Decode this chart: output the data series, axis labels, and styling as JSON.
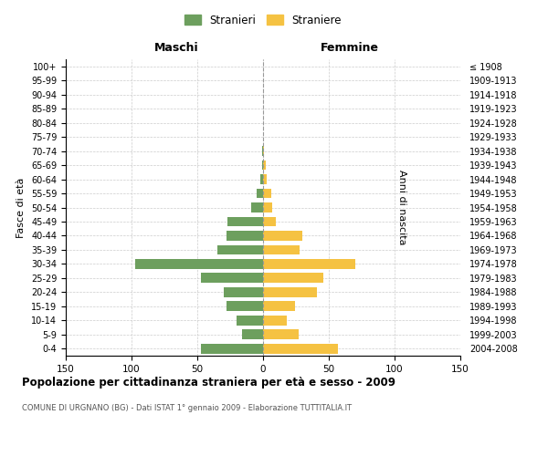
{
  "age_groups": [
    "100+",
    "95-99",
    "90-94",
    "85-89",
    "80-84",
    "75-79",
    "70-74",
    "65-69",
    "60-64",
    "55-59",
    "50-54",
    "45-49",
    "40-44",
    "35-39",
    "30-34",
    "25-29",
    "20-24",
    "15-19",
    "10-14",
    "5-9",
    "0-4"
  ],
  "birth_years": [
    "≤ 1908",
    "1909-1913",
    "1914-1918",
    "1919-1923",
    "1924-1928",
    "1929-1933",
    "1934-1938",
    "1939-1943",
    "1944-1948",
    "1949-1953",
    "1954-1958",
    "1959-1963",
    "1964-1968",
    "1969-1973",
    "1974-1978",
    "1979-1983",
    "1984-1988",
    "1989-1993",
    "1994-1998",
    "1999-2003",
    "2004-2008"
  ],
  "males": [
    0,
    0,
    0,
    0,
    0,
    0,
    1,
    1,
    2,
    5,
    9,
    27,
    28,
    35,
    97,
    47,
    30,
    28,
    20,
    16,
    47
  ],
  "females": [
    0,
    0,
    0,
    0,
    0,
    0,
    1,
    2,
    3,
    6,
    7,
    10,
    30,
    28,
    70,
    46,
    41,
    24,
    18,
    27,
    57
  ],
  "male_color": "#6d9f5e",
  "female_color": "#f5c242",
  "title": "Popolazione per cittadinanza straniera per età e sesso - 2009",
  "subtitle": "COMUNE DI URGNANO (BG) - Dati ISTAT 1° gennaio 2009 - Elaborazione TUTTITALIA.IT",
  "xlabel_left": "Maschi",
  "xlabel_right": "Femmine",
  "ylabel_left": "Fasce di età",
  "ylabel_right": "Anni di nascita",
  "legend_stranieri": "Stranieri",
  "legend_straniere": "Straniere",
  "xlim": 150,
  "background_color": "#ffffff",
  "grid_color": "#cccccc"
}
